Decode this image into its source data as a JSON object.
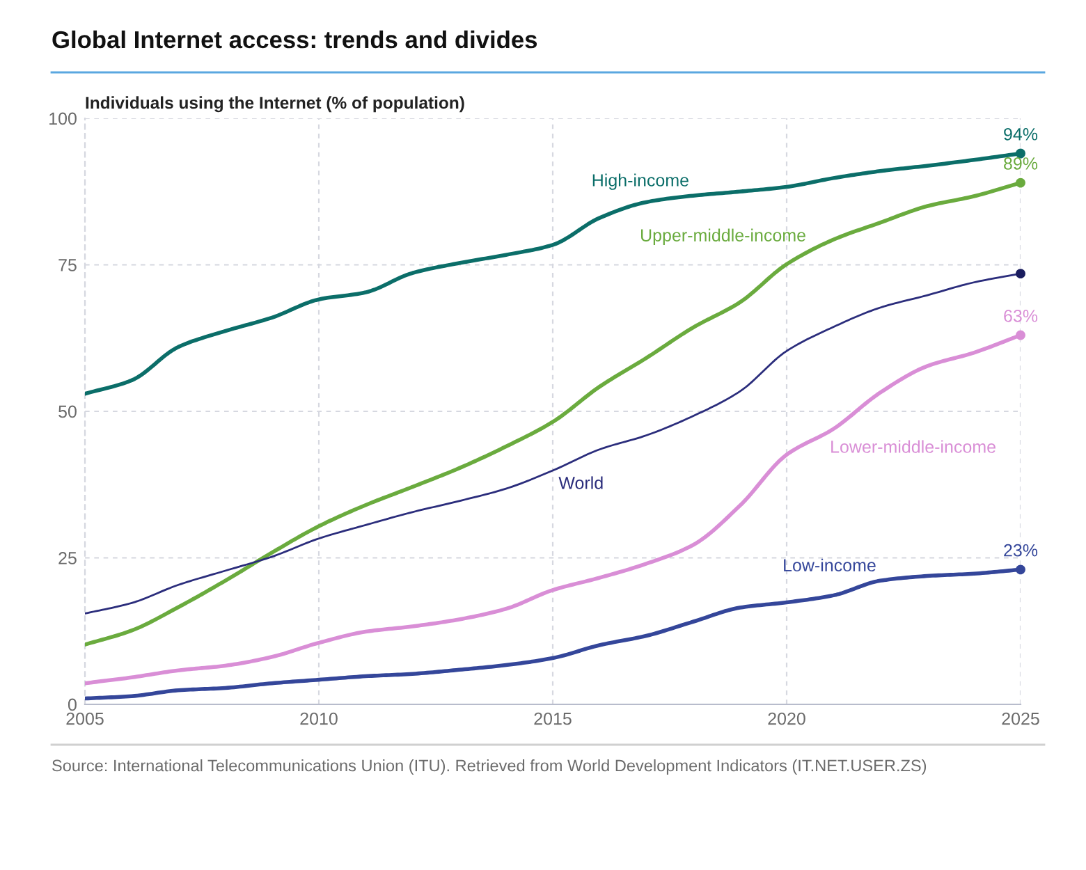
{
  "chart_data": {
    "type": "line",
    "title": "Global Internet access: trends and divides",
    "ylabel": "Individuals using the Internet (% of population)",
    "annotations": [
      "Source: International Telecommunications Union (ITU). Retrieved from World Development Indicators (IT.NET.USER.ZS)"
    ],
    "x": [
      2005,
      2006,
      2007,
      2008,
      2009,
      2010,
      2011,
      2012,
      2013,
      2014,
      2015,
      2016,
      2017,
      2018,
      2019,
      2020,
      2021,
      2022,
      2023,
      2024,
      2025
    ],
    "xlim": [
      2005,
      2025
    ],
    "xticks": [
      2005,
      2010,
      2015,
      2020,
      2025
    ],
    "ylim": [
      0,
      100
    ],
    "yticks": [
      0,
      25,
      50,
      75,
      100
    ],
    "grid": true,
    "series": [
      {
        "name": "High-income",
        "color": "#0b6e69",
        "values": [
          53,
          55.3,
          61,
          63.7,
          66,
          69.1,
          70.3,
          73.6,
          75.3,
          76.7,
          78.4,
          83,
          85.7,
          86.8,
          87.5,
          88.3,
          89.8,
          91,
          91.9,
          92.9,
          94
        ]
      },
      {
        "name": "Upper-middle-income",
        "color": "#6aab3e",
        "values": [
          10.2,
          12.6,
          16.6,
          21.1,
          25.9,
          30.4,
          34,
          37.1,
          40.3,
          44,
          48.2,
          54.2,
          59.1,
          64.3,
          68.6,
          75.1,
          79.3,
          82.2,
          85,
          86.7,
          89
        ]
      },
      {
        "name": "World",
        "color": "#2b2d7c",
        "values": [
          15.5,
          17.3,
          20.4,
          22.8,
          25.2,
          28.3,
          30.6,
          32.8,
          34.7,
          36.8,
          39.9,
          43.5,
          45.9,
          49.2,
          53.4,
          60.3,
          64.4,
          67.7,
          69.8,
          72,
          73.5
        ]
      },
      {
        "name": "Lower-middle-income",
        "color": "#d98ed6",
        "values": [
          3.6,
          4.6,
          5.8,
          6.6,
          8.1,
          10.5,
          12.4,
          13.3,
          14.5,
          16.3,
          19.5,
          21.6,
          24,
          27.2,
          33.9,
          42.6,
          47,
          53.2,
          57.7,
          60,
          63
        ]
      },
      {
        "name": "Low-income",
        "color": "#34469a",
        "values": [
          1,
          1.4,
          2.4,
          2.8,
          3.6,
          4.2,
          4.8,
          5.2,
          5.9,
          6.7,
          7.9,
          10.1,
          11.7,
          14.1,
          16.5,
          17.4,
          18.6,
          21.1,
          21.9,
          22.3,
          23
        ]
      },
      {
        "type": "scatter",
        "color": "#0b6e69",
        "values": [
          null,
          null,
          null,
          null,
          null,
          null,
          null,
          null,
          null,
          null,
          null,
          null,
          null,
          null,
          null,
          null,
          null,
          null,
          null,
          null,
          94
        ],
        "value_labels": [
          null,
          null,
          null,
          null,
          null,
          null,
          null,
          null,
          null,
          null,
          null,
          null,
          null,
          null,
          null,
          null,
          null,
          null,
          null,
          null,
          "94%"
        ]
      },
      {
        "type": "scatter",
        "color": "#6aab3e",
        "values": [
          null,
          null,
          null,
          null,
          null,
          null,
          null,
          null,
          null,
          null,
          null,
          null,
          null,
          null,
          null,
          null,
          null,
          null,
          null,
          null,
          89
        ],
        "value_labels": [
          null,
          null,
          null,
          null,
          null,
          null,
          null,
          null,
          null,
          null,
          null,
          null,
          null,
          null,
          null,
          null,
          null,
          null,
          null,
          null,
          "89%"
        ]
      },
      {
        "type": "scatter",
        "color": "#1a1c5e",
        "values": [
          null,
          null,
          null,
          null,
          null,
          null,
          null,
          null,
          null,
          null,
          null,
          null,
          null,
          null,
          null,
          null,
          null,
          null,
          null,
          null,
          73.5
        ]
      },
      {
        "type": "scatter",
        "color": "#d98ed6",
        "values": [
          null,
          null,
          null,
          null,
          null,
          null,
          null,
          null,
          null,
          null,
          null,
          null,
          null,
          null,
          null,
          null,
          null,
          null,
          null,
          null,
          63
        ],
        "value_labels": [
          null,
          null,
          null,
          null,
          null,
          null,
          null,
          null,
          null,
          null,
          null,
          null,
          null,
          null,
          null,
          null,
          null,
          null,
          null,
          null,
          "63%"
        ]
      },
      {
        "type": "scatter",
        "color": "#34469a",
        "values": [
          null,
          null,
          null,
          null,
          null,
          null,
          null,
          null,
          null,
          null,
          null,
          null,
          null,
          null,
          null,
          null,
          null,
          null,
          null,
          null,
          23
        ],
        "value_labels": [
          null,
          null,
          null,
          null,
          null,
          null,
          null,
          null,
          null,
          null,
          null,
          null,
          null,
          null,
          null,
          null,
          null,
          null,
          null,
          null,
          "23%"
        ]
      }
    ]
  }
}
